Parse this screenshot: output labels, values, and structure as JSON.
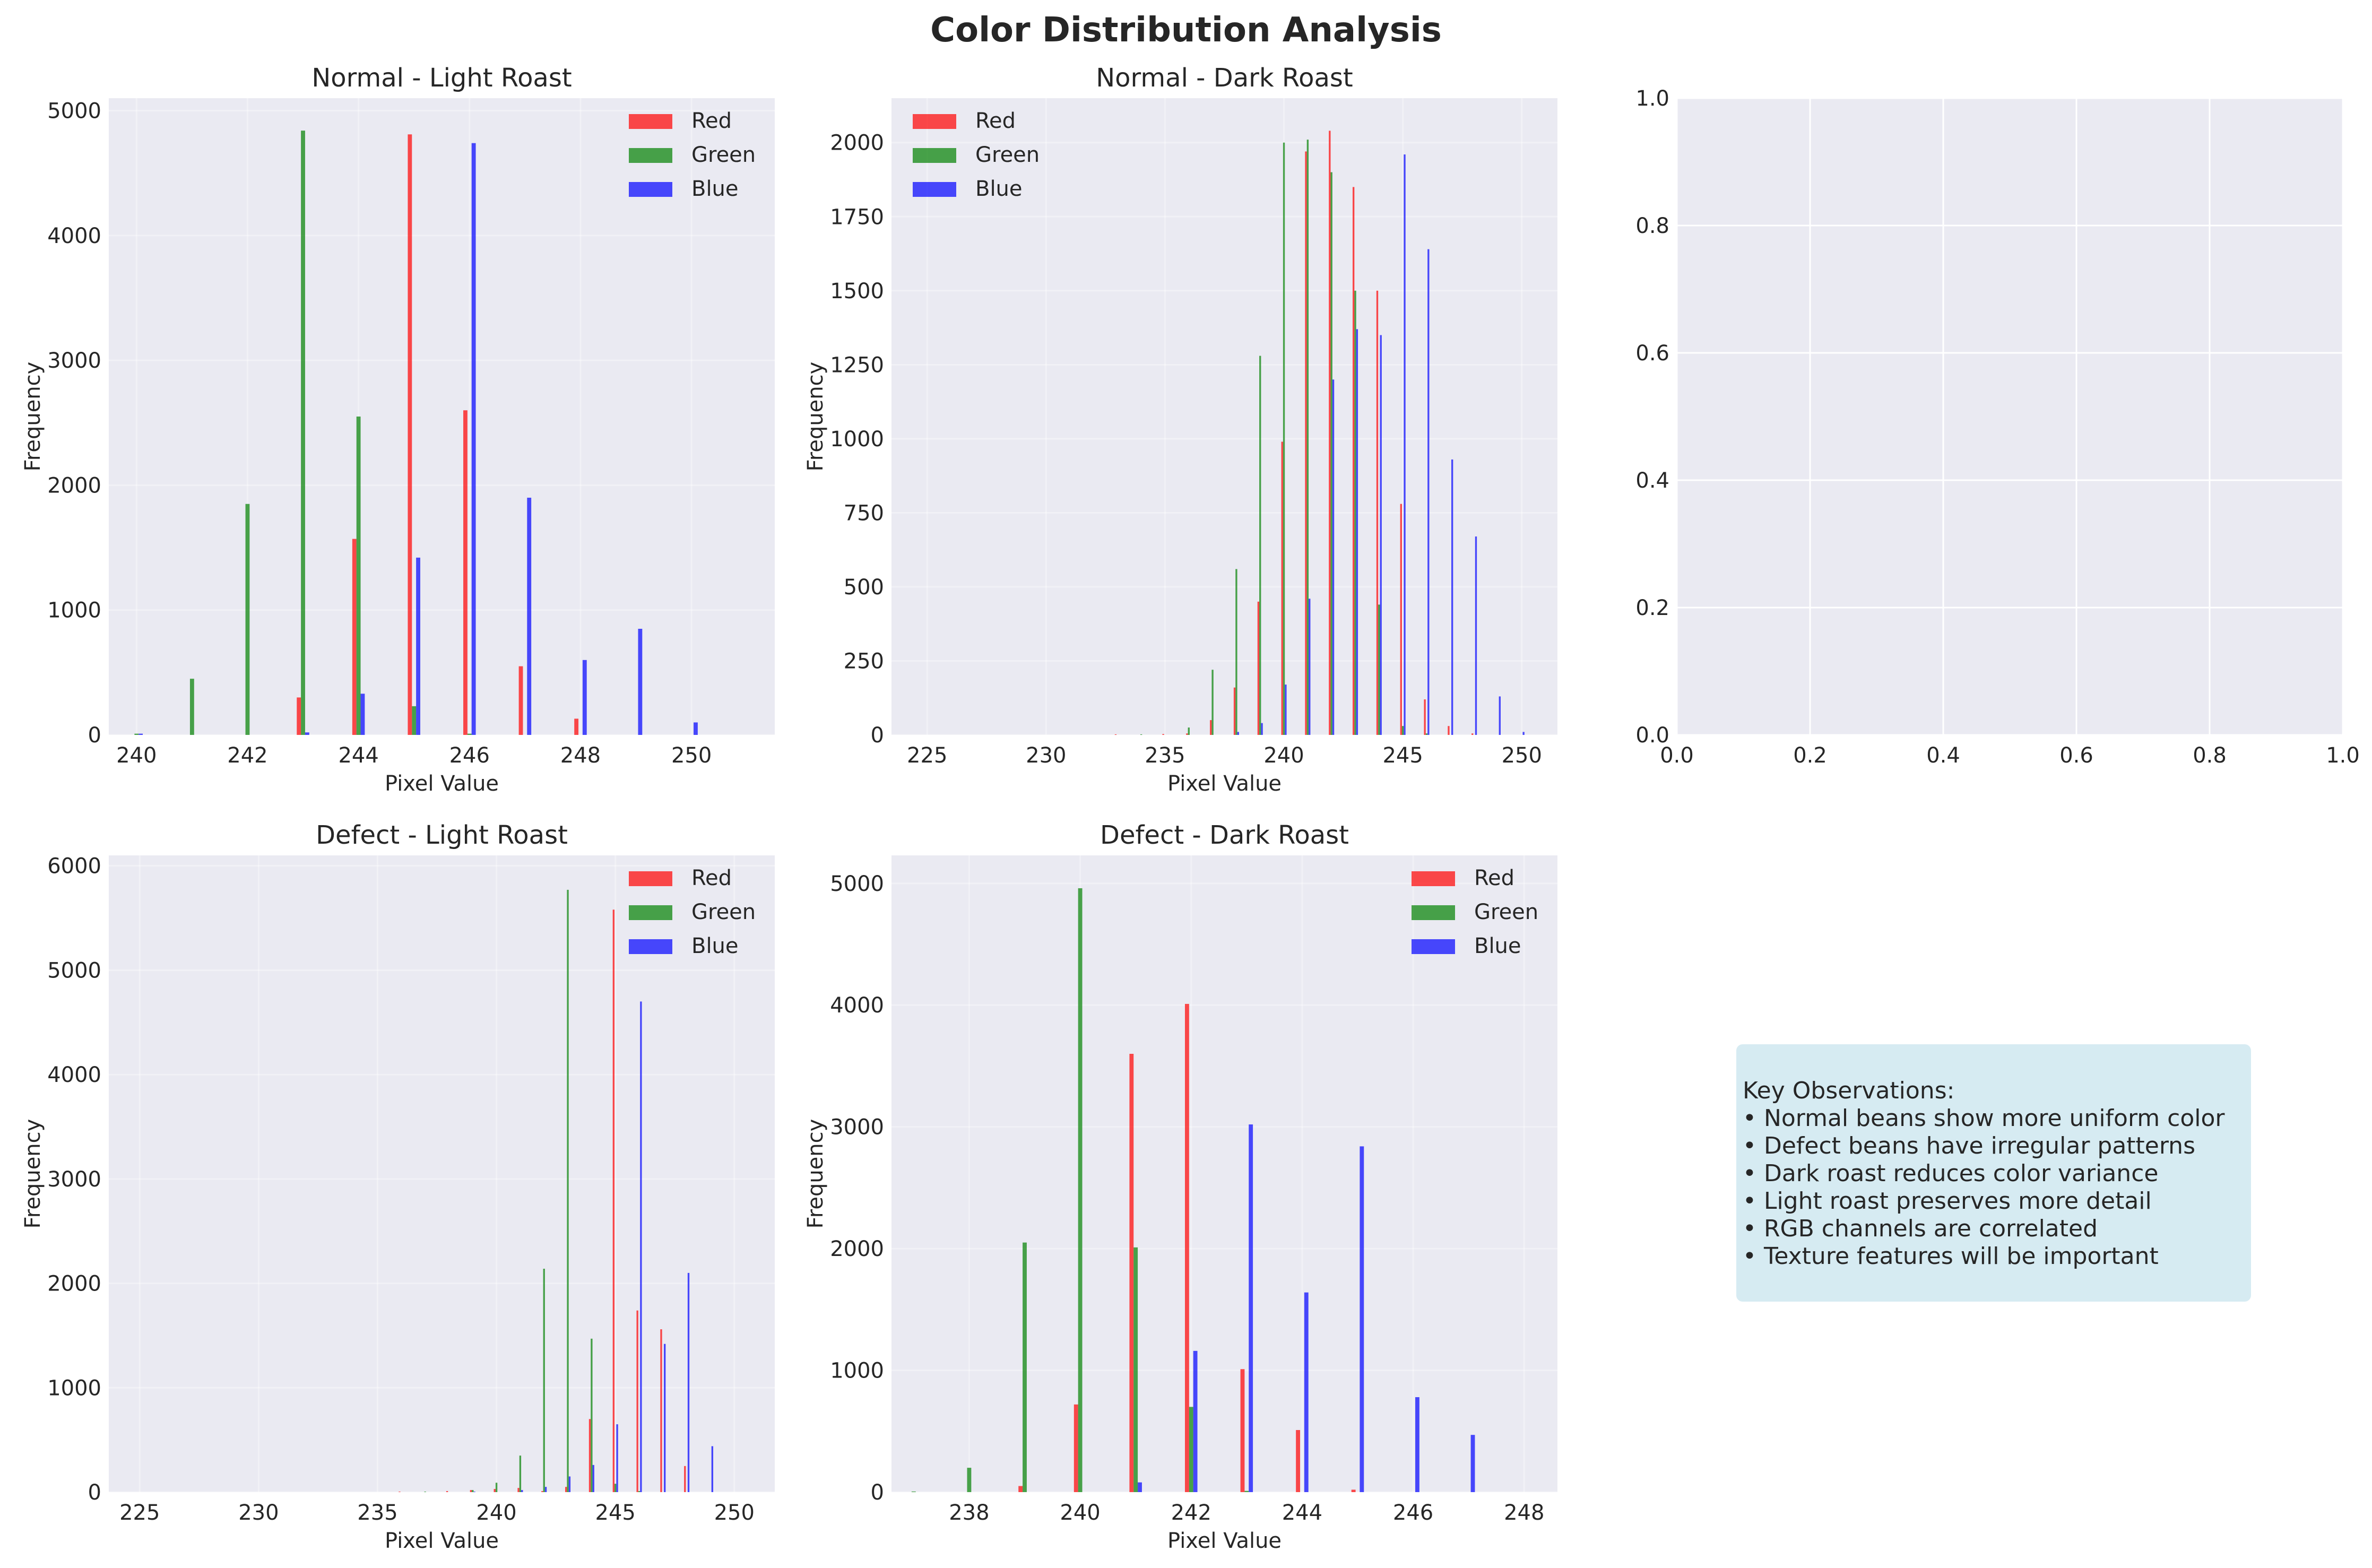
{
  "suptitle": "Color Distribution Analysis",
  "colors": {
    "Red": "#ff0000",
    "Green": "#008000",
    "Blue": "#0000ff",
    "axes_bg": "#eaeaf2",
    "grid": "#ffffff",
    "textbox_bg": "#add8e6"
  },
  "chart_data": [
    {
      "type": "bar",
      "title": "Normal - Light Roast",
      "xlabel": "Pixel Value",
      "ylabel": "Frequency",
      "xlim": [
        239.5,
        251.5
      ],
      "ylim": [
        0,
        5100
      ],
      "xticks": [
        240,
        242,
        244,
        246,
        248,
        250
      ],
      "yticks": [
        0,
        1000,
        2000,
        3000,
        4000,
        5000
      ],
      "legend": "top-right",
      "series": [
        {
          "name": "Red",
          "points": [
            [
              243,
              300
            ],
            [
              244,
              1570
            ],
            [
              245,
              4810
            ],
            [
              246,
              2600
            ],
            [
              247,
              550
            ],
            [
              248,
              130
            ]
          ]
        },
        {
          "name": "Green",
          "points": [
            [
              240,
              10
            ],
            [
              241,
              450
            ],
            [
              242,
              1850
            ],
            [
              243,
              4840
            ],
            [
              244,
              2550
            ],
            [
              245,
              230
            ],
            [
              246,
              10
            ]
          ]
        },
        {
          "name": "Blue",
          "points": [
            [
              240,
              10
            ],
            [
              243,
              20
            ],
            [
              244,
              330
            ],
            [
              245,
              1420
            ],
            [
              246,
              4740
            ],
            [
              247,
              1900
            ],
            [
              248,
              600
            ],
            [
              249,
              850
            ],
            [
              250,
              100
            ]
          ]
        }
      ]
    },
    {
      "type": "bar",
      "title": "Normal - Dark Roast",
      "xlabel": "Pixel Value",
      "ylabel": "Frequency",
      "xlim": [
        223.5,
        251.5
      ],
      "ylim": [
        0,
        2150
      ],
      "xticks": [
        225,
        230,
        235,
        240,
        245,
        250
      ],
      "yticks": [
        0,
        250,
        500,
        750,
        1000,
        1250,
        1500,
        1750,
        2000
      ],
      "legend": "top-left",
      "series": [
        {
          "name": "Red",
          "points": [
            [
              233,
              2
            ],
            [
              235,
              3
            ],
            [
              236,
              5
            ],
            [
              237,
              50
            ],
            [
              238,
              160
            ],
            [
              239,
              450
            ],
            [
              240,
              990
            ],
            [
              241,
              1970
            ],
            [
              242,
              2040
            ],
            [
              243,
              1850
            ],
            [
              244,
              1500
            ],
            [
              245,
              780
            ],
            [
              246,
              120
            ],
            [
              247,
              30
            ],
            [
              248,
              5
            ]
          ]
        },
        {
          "name": "Green",
          "points": [
            [
              234,
              2
            ],
            [
              236,
              25
            ],
            [
              237,
              220
            ],
            [
              238,
              560
            ],
            [
              239,
              1280
            ],
            [
              240,
              2000
            ],
            [
              241,
              2010
            ],
            [
              242,
              1900
            ],
            [
              243,
              1500
            ],
            [
              244,
              440
            ],
            [
              245,
              30
            ],
            [
              246,
              5
            ]
          ]
        },
        {
          "name": "Blue",
          "points": [
            [
              238,
              10
            ],
            [
              239,
              40
            ],
            [
              240,
              170
            ],
            [
              241,
              460
            ],
            [
              242,
              1200
            ],
            [
              243,
              1370
            ],
            [
              244,
              1350
            ],
            [
              245,
              1960
            ],
            [
              246,
              1640
            ],
            [
              247,
              930
            ],
            [
              248,
              670
            ],
            [
              249,
              130
            ],
            [
              250,
              10
            ]
          ]
        }
      ]
    },
    {
      "type": "empty",
      "xlim": [
        0,
        1
      ],
      "ylim": [
        0,
        1
      ],
      "xticks": [
        0.0,
        0.2,
        0.4,
        0.6,
        0.8,
        1.0
      ],
      "yticks": [
        0.0,
        0.2,
        0.4,
        0.6,
        0.8,
        1.0
      ]
    },
    {
      "type": "bar",
      "title": "Defect - Light Roast",
      "xlabel": "Pixel Value",
      "ylabel": "Frequency",
      "xlim": [
        223.7,
        251.7
      ],
      "ylim": [
        0,
        6100
      ],
      "xticks": [
        225,
        230,
        235,
        240,
        245,
        250
      ],
      "yticks": [
        0,
        1000,
        2000,
        3000,
        4000,
        5000,
        6000
      ],
      "legend": "top-right",
      "series": [
        {
          "name": "Red",
          "points": [
            [
              236,
              5
            ],
            [
              238,
              10
            ],
            [
              239,
              20
            ],
            [
              240,
              30
            ],
            [
              241,
              40
            ],
            [
              242,
              10
            ],
            [
              243,
              50
            ],
            [
              244,
              700
            ],
            [
              245,
              5580
            ],
            [
              246,
              1740
            ],
            [
              247,
              1560
            ],
            [
              248,
              250
            ]
          ]
        },
        {
          "name": "Green",
          "points": [
            [
              237,
              5
            ],
            [
              239,
              20
            ],
            [
              240,
              90
            ],
            [
              241,
              350
            ],
            [
              242,
              2140
            ],
            [
              243,
              5770
            ],
            [
              244,
              1470
            ],
            [
              245,
              80
            ],
            [
              246,
              10
            ]
          ]
        },
        {
          "name": "Blue",
          "points": [
            [
              239,
              5
            ],
            [
              241,
              20
            ],
            [
              242,
              50
            ],
            [
              243,
              150
            ],
            [
              244,
              260
            ],
            [
              245,
              650
            ],
            [
              246,
              4700
            ],
            [
              247,
              1420
            ],
            [
              248,
              2100
            ],
            [
              249,
              440
            ]
          ]
        }
      ]
    },
    {
      "type": "bar",
      "title": "Defect - Dark Roast",
      "xlabel": "Pixel Value",
      "ylabel": "Frequency",
      "xlim": [
        236.6,
        248.6
      ],
      "ylim": [
        0,
        5230
      ],
      "xticks": [
        238,
        240,
        242,
        244,
        246,
        248
      ],
      "yticks": [
        0,
        1000,
        2000,
        3000,
        4000,
        5000
      ],
      "legend": "top-right",
      "series": [
        {
          "name": "Red",
          "points": [
            [
              239,
              50
            ],
            [
              240,
              720
            ],
            [
              241,
              3600
            ],
            [
              242,
              4010
            ],
            [
              243,
              1010
            ],
            [
              244,
              510
            ],
            [
              245,
              20
            ]
          ]
        },
        {
          "name": "Green",
          "points": [
            [
              237,
              5
            ],
            [
              238,
              200
            ],
            [
              239,
              2050
            ],
            [
              240,
              4960
            ],
            [
              241,
              2010
            ],
            [
              242,
              700
            ],
            [
              243,
              10
            ]
          ]
        },
        {
          "name": "Blue",
          "points": [
            [
              241,
              80
            ],
            [
              242,
              1160
            ],
            [
              243,
              3020
            ],
            [
              244,
              1640
            ],
            [
              245,
              2840
            ],
            [
              246,
              780
            ],
            [
              247,
              470
            ]
          ]
        }
      ]
    }
  ],
  "observations": {
    "header": "Key Observations:",
    "items": [
      "• Normal beans show more uniform color",
      "• Defect beans have irregular patterns",
      "• Dark roast reduces color variance",
      "• Light roast preserves more detail",
      "• RGB channels are correlated",
      "• Texture features will be important"
    ]
  }
}
